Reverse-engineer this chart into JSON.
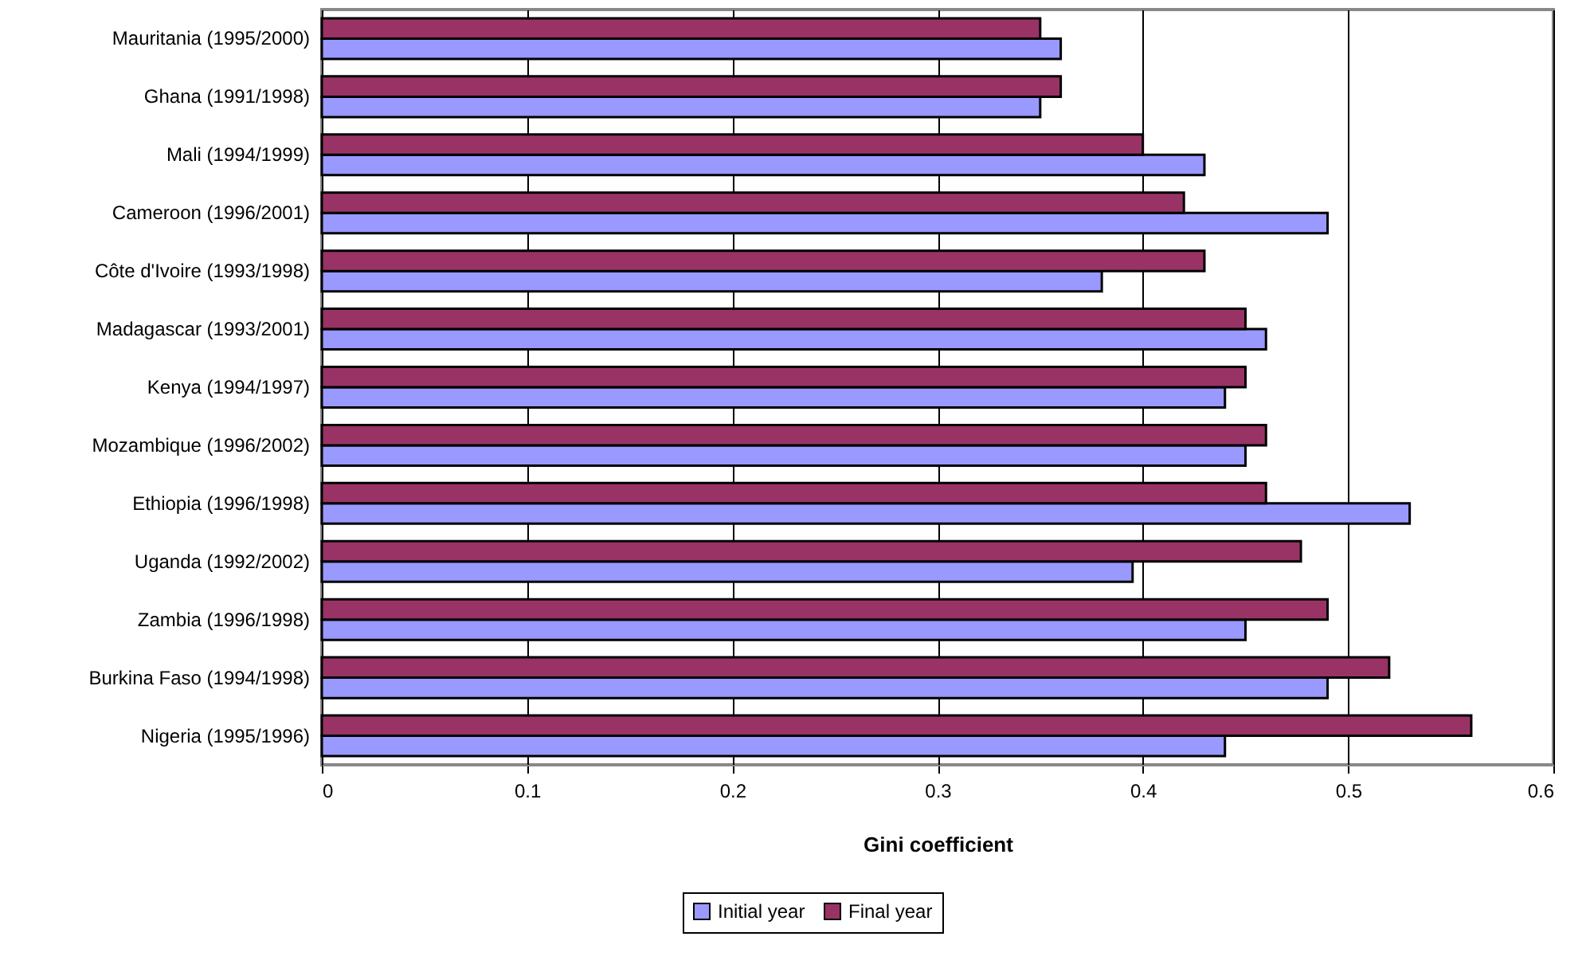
{
  "chart_data": {
    "type": "bar",
    "orientation": "horizontal",
    "xlabel": "Gini coefficient",
    "categories": [
      "Mauritania (1995/2000)",
      "Ghana (1991/1998)",
      "Mali (1994/1999)",
      "Cameroon (1996/2001)",
      "Côte d'Ivoire (1993/1998)",
      "Madagascar (1993/2001)",
      "Kenya (1994/1997)",
      "Mozambique (1996/2002)",
      "Ethiopia (1996/1998)",
      "Uganda (1992/2002)",
      "Zambia (1996/1998)",
      "Burkina Faso (1994/1998)",
      "Nigeria (1995/1996)"
    ],
    "series": [
      {
        "name": "Initial year",
        "color": "#9999ff",
        "values": [
          0.36,
          0.35,
          0.43,
          0.49,
          0.38,
          0.46,
          0.44,
          0.45,
          0.53,
          0.395,
          0.45,
          0.49,
          0.44
        ]
      },
      {
        "name": "Final year",
        "color": "#993366",
        "values": [
          0.35,
          0.36,
          0.4,
          0.42,
          0.43,
          0.45,
          0.45,
          0.46,
          0.46,
          0.477,
          0.49,
          0.52,
          0.56
        ]
      }
    ],
    "xlim": [
      0,
      0.6
    ],
    "xticks": [
      0,
      0.1,
      0.2,
      0.3,
      0.4,
      0.5,
      0.6
    ],
    "grid": "x",
    "legend": "bottom"
  }
}
